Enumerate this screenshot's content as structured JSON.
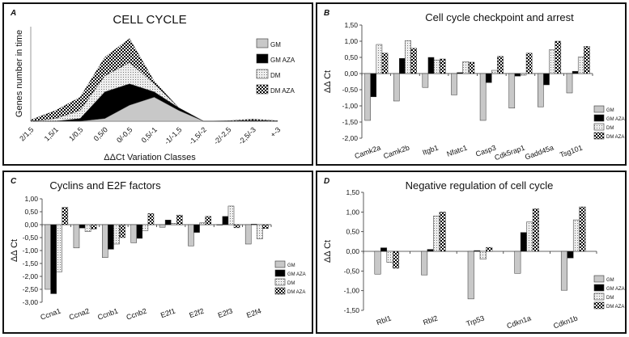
{
  "colors": {
    "GM": "#c8c8c8",
    "GM AZA": "#000000",
    "DM": "dotted light gray",
    "DM AZA": "black-white checkerboard"
  },
  "chart_data": [
    {
      "panel_letter": "A",
      "type": "area",
      "stacked": true,
      "title": "CELL CYCLE",
      "xlabel": "ΔΔCt Variation Classes",
      "ylabel": "Genes number in time",
      "categories": [
        "2/1,5",
        "1,5/1",
        "1/0,5",
        "0,5/0",
        "0/-0,5",
        "0,5/-1",
        "-1/-1,5",
        "-1,5/-2",
        "-2/-2,5",
        "-2,5/-3",
        "+-3"
      ],
      "legend_position": "right",
      "series": [
        {
          "name": "GM",
          "values": [
            0,
            0,
            0,
            1,
            6,
            9,
            4,
            0,
            0,
            0,
            0
          ]
        },
        {
          "name": "GM AZA",
          "values": [
            0,
            0,
            1,
            10,
            8,
            2,
            1,
            0,
            0,
            0.3,
            0
          ]
        },
        {
          "name": "DM",
          "values": [
            0,
            1,
            3,
            6,
            8,
            3,
            0,
            0,
            0,
            0,
            0
          ]
        },
        {
          "name": "DM AZA",
          "values": [
            0.5,
            3,
            5,
            7,
            9,
            1,
            0,
            0,
            0.2,
            0.5,
            0.2
          ]
        }
      ]
    },
    {
      "panel_letter": "B",
      "type": "bar",
      "title": "Cell cycle checkpoint and arrest",
      "xlabel": "",
      "ylabel": "ΔΔ Ct",
      "ylim": [
        -2,
        1.5
      ],
      "yticks": [
        "-2,00",
        "-1,50",
        "-1,00",
        "-0,50",
        "0,00",
        "0,50",
        "1,00",
        "1,50"
      ],
      "categories": [
        "Camk2a",
        "Camk2b",
        "Itgb1",
        "Nfatc1",
        "Casp3",
        "Cdk5rap1",
        "Gadd45a",
        "Tsg101"
      ],
      "legend_position": "right",
      "series": [
        {
          "name": "GM",
          "values": [
            -1.45,
            -0.85,
            -0.43,
            -0.66,
            -1.45,
            -1.07,
            -1.03,
            -0.6
          ]
        },
        {
          "name": "GM AZA",
          "values": [
            -0.72,
            0.47,
            0.5,
            0.03,
            -0.28,
            -0.08,
            -0.35,
            0.07
          ]
        },
        {
          "name": "DM",
          "values": [
            0.9,
            1.02,
            0.42,
            0.37,
            0.1,
            -0.05,
            0.74,
            0.51
          ]
        },
        {
          "name": "DM AZA",
          "values": [
            0.63,
            0.78,
            0.45,
            0.35,
            0.53,
            0.63,
            1.0,
            0.84
          ]
        }
      ]
    },
    {
      "panel_letter": "C",
      "type": "bar",
      "title": "Cyclins and E2F factors",
      "xlabel": "",
      "ylabel": "ΔΔ Ct",
      "ylim": [
        -3,
        1
      ],
      "yticks": [
        "-3,00",
        "-2,50",
        "-2,00",
        "-1,50",
        "-1,00",
        "-0,50",
        "0,00",
        "0,50",
        "1,00"
      ],
      "categories": [
        "Ccna1",
        "Ccna2",
        "Ccnb1",
        "Ccnb2",
        "E2f1",
        "E2f2",
        "E2f3",
        "E2f4"
      ],
      "legend_position": "right",
      "series": [
        {
          "name": "GM",
          "values": [
            -2.5,
            -0.9,
            -1.27,
            -0.7,
            -0.1,
            -0.82,
            -0.02,
            -0.75
          ]
        },
        {
          "name": "GM AZA",
          "values": [
            -2.67,
            -0.13,
            -0.95,
            -0.53,
            0.18,
            -0.3,
            0.32,
            0.02
          ]
        },
        {
          "name": "DM",
          "values": [
            -1.82,
            -0.27,
            -0.75,
            -0.23,
            0.05,
            0.07,
            0.72,
            -0.55
          ]
        },
        {
          "name": "DM AZA",
          "values": [
            0.67,
            -0.17,
            -0.5,
            0.43,
            0.37,
            0.32,
            -0.12,
            -0.15
          ]
        }
      ]
    },
    {
      "panel_letter": "D",
      "type": "bar",
      "title": "Negative regulation of cell cycle",
      "xlabel": "",
      "ylabel": "ΔΔ Ct",
      "ylim": [
        -1.5,
        1.5
      ],
      "yticks": [
        "-1,50",
        "-1,00",
        "-0,50",
        "0,00",
        "0,50",
        "1,00",
        "1,50"
      ],
      "categories": [
        "Rbl1",
        "Rbl2",
        "Trp53",
        "Cdkn1a",
        "Cdkn1b"
      ],
      "legend_position": "right",
      "series": [
        {
          "name": "GM",
          "values": [
            -0.58,
            -0.6,
            -1.21,
            -0.56,
            -0.99
          ]
        },
        {
          "name": "GM AZA",
          "values": [
            0.09,
            0.05,
            0.02,
            0.48,
            -0.17
          ]
        },
        {
          "name": "DM",
          "values": [
            -0.28,
            0.9,
            -0.2,
            0.75,
            0.8
          ]
        },
        {
          "name": "DM AZA",
          "values": [
            -0.43,
            1.0,
            0.1,
            1.08,
            1.13
          ]
        }
      ]
    }
  ]
}
